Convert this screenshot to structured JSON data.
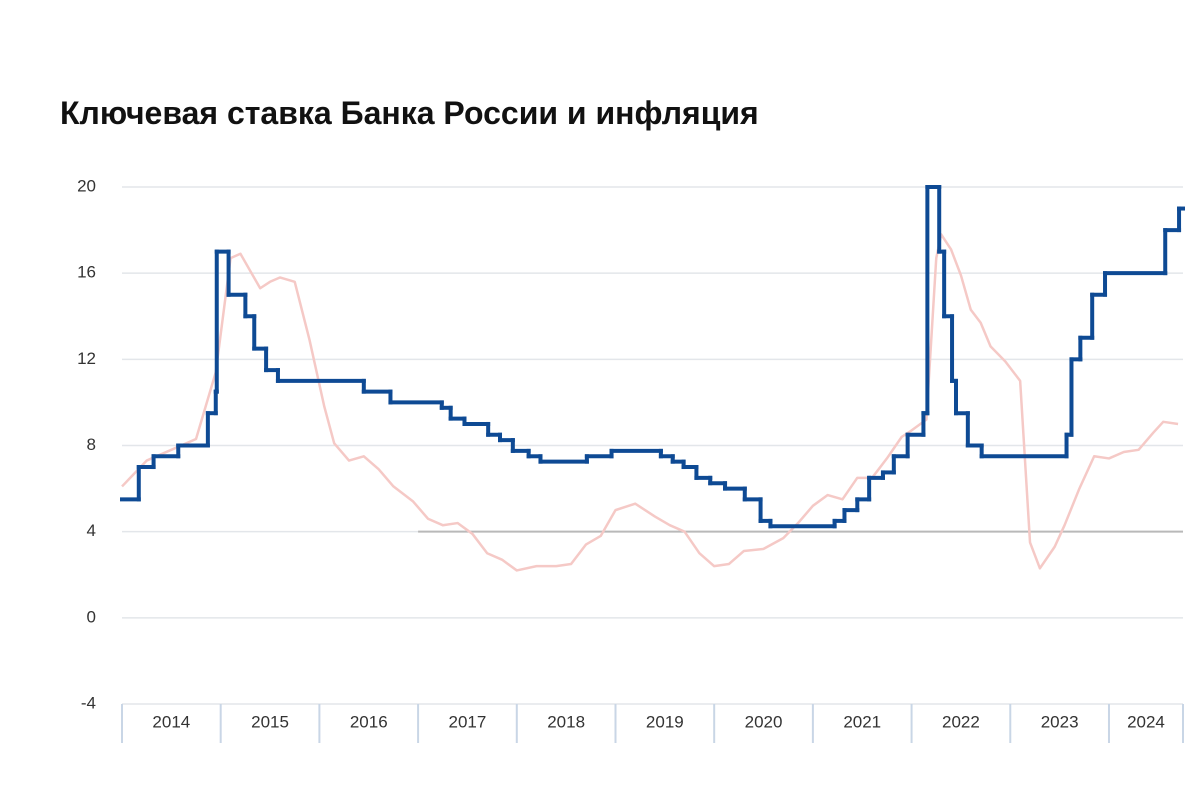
{
  "chart_data": {
    "type": "step-line",
    "title": "Ключевая ставка Банка России и инфляция",
    "ylim": [
      -4,
      20
    ],
    "yticks": [
      -4,
      0,
      4,
      8,
      12,
      16,
      20
    ],
    "grid": true,
    "xlim": [
      2014,
      2024.75
    ],
    "xticks": [
      2014,
      2015,
      2016,
      2017,
      2018,
      2019,
      2020,
      2021,
      2022,
      2023,
      2024
    ],
    "target": {
      "value": 4,
      "from": 2017,
      "color": "#b9b9b9"
    },
    "series": [
      {
        "color": "#f5c9c6",
        "step": false,
        "x": [
          2014.0,
          2014.25,
          2014.5,
          2014.75,
          2014.95,
          2015.1,
          2015.2,
          2015.4,
          2015.5,
          2015.6,
          2015.75,
          2015.9,
          2016.05,
          2016.15,
          2016.3,
          2016.45,
          2016.6,
          2016.75,
          2016.95,
          2017.1,
          2017.25,
          2017.4,
          2017.55,
          2017.7,
          2017.85,
          2018.0,
          2018.2,
          2018.4,
          2018.55,
          2018.7,
          2018.85,
          2019.0,
          2019.2,
          2019.4,
          2019.55,
          2019.7,
          2019.85,
          2020.0,
          2020.15,
          2020.3,
          2020.5,
          2020.7,
          2020.85,
          2021.0,
          2021.15,
          2021.3,
          2021.45,
          2021.6,
          2021.75,
          2021.9,
          2022.0,
          2022.15,
          2022.25,
          2022.3,
          2022.4,
          2022.5,
          2022.6,
          2022.7,
          2022.8,
          2022.95,
          2023.1,
          2023.2,
          2023.3,
          2023.45,
          2023.55,
          2023.7,
          2023.85,
          2024.0,
          2024.15,
          2024.3,
          2024.45,
          2024.55,
          2024.7
        ],
        "values": [
          6.1,
          7.3,
          7.8,
          8.3,
          11.4,
          16.7,
          16.9,
          15.3,
          15.6,
          15.8,
          15.6,
          12.9,
          9.8,
          8.1,
          7.3,
          7.5,
          6.9,
          6.1,
          5.4,
          4.6,
          4.3,
          4.4,
          3.9,
          3.0,
          2.7,
          2.2,
          2.4,
          2.4,
          2.5,
          3.4,
          3.8,
          5.0,
          5.3,
          4.7,
          4.3,
          4.0,
          3.0,
          2.4,
          2.5,
          3.1,
          3.2,
          3.7,
          4.4,
          5.2,
          5.7,
          5.5,
          6.5,
          6.5,
          7.4,
          8.4,
          8.7,
          9.2,
          16.7,
          17.8,
          17.1,
          15.9,
          14.3,
          13.7,
          12.6,
          11.9,
          11.0,
          3.5,
          2.3,
          3.3,
          4.3,
          6.0,
          7.5,
          7.4,
          7.7,
          7.8,
          8.6,
          9.1,
          9.0
        ]
      },
      {
        "color": "#0e4a94",
        "step": true,
        "x": [
          2014.0,
          2014.17,
          2014.32,
          2014.57,
          2014.87,
          2014.95,
          2014.96,
          2015.08,
          2015.25,
          2015.34,
          2015.46,
          2015.58,
          2016.45,
          2016.72,
          2017.24,
          2017.33,
          2017.47,
          2017.71,
          2017.83,
          2017.96,
          2018.12,
          2018.24,
          2018.71,
          2018.96,
          2019.46,
          2019.58,
          2019.69,
          2019.82,
          2019.96,
          2020.11,
          2020.31,
          2020.47,
          2020.57,
          2021.22,
          2021.32,
          2021.45,
          2021.57,
          2021.71,
          2021.82,
          2021.96,
          2022.12,
          2022.16,
          2022.28,
          2022.33,
          2022.41,
          2022.45,
          2022.57,
          2022.71,
          2023.57,
          2023.62,
          2023.71,
          2023.83,
          2023.96,
          2024.57,
          2024.71
        ],
        "values": [
          5.5,
          7,
          7.5,
          8,
          9.5,
          10.5,
          17,
          15,
          14,
          12.5,
          11.5,
          11,
          10.5,
          10,
          9.75,
          9.25,
          9,
          8.5,
          8.25,
          7.75,
          7.5,
          7.25,
          7.5,
          7.75,
          7.5,
          7.25,
          7,
          6.5,
          6.25,
          6,
          5.5,
          4.5,
          4.25,
          4.5,
          5,
          5.5,
          6.5,
          6.75,
          7.5,
          8.5,
          9.5,
          20,
          17,
          14,
          11,
          9.5,
          8,
          7.5,
          8.5,
          12,
          13,
          15,
          16,
          18,
          19
        ]
      }
    ]
  }
}
